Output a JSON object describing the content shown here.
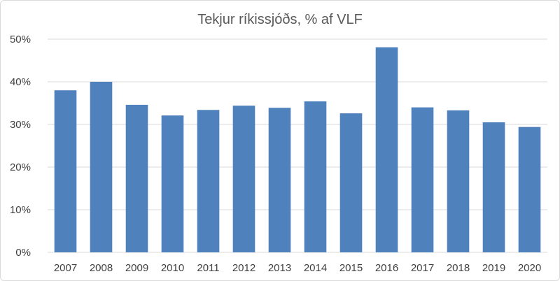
{
  "chart_data": {
    "type": "bar",
    "title": "Tekjur ríkissjóðs, % af VLF",
    "xlabel": "",
    "ylabel": "",
    "categories": [
      "2007",
      "2008",
      "2009",
      "2010",
      "2011",
      "2012",
      "2013",
      "2014",
      "2015",
      "2016",
      "2017",
      "2018",
      "2019",
      "2020"
    ],
    "series": [
      {
        "values": [
          38.0,
          40.0,
          34.6,
          32.1,
          33.4,
          34.4,
          33.9,
          35.4,
          32.6,
          48.1,
          34.0,
          33.3,
          30.5,
          29.4
        ],
        "color": "#4f81bd"
      }
    ],
    "ylim": [
      0,
      50
    ],
    "yticks": [
      0,
      10,
      20,
      30,
      40,
      50
    ],
    "ytick_labels": [
      "0%",
      "10%",
      "20%",
      "30%",
      "40%",
      "50%"
    ],
    "grid": true,
    "legend": "none",
    "gridline_color": "#d9d9d9"
  }
}
